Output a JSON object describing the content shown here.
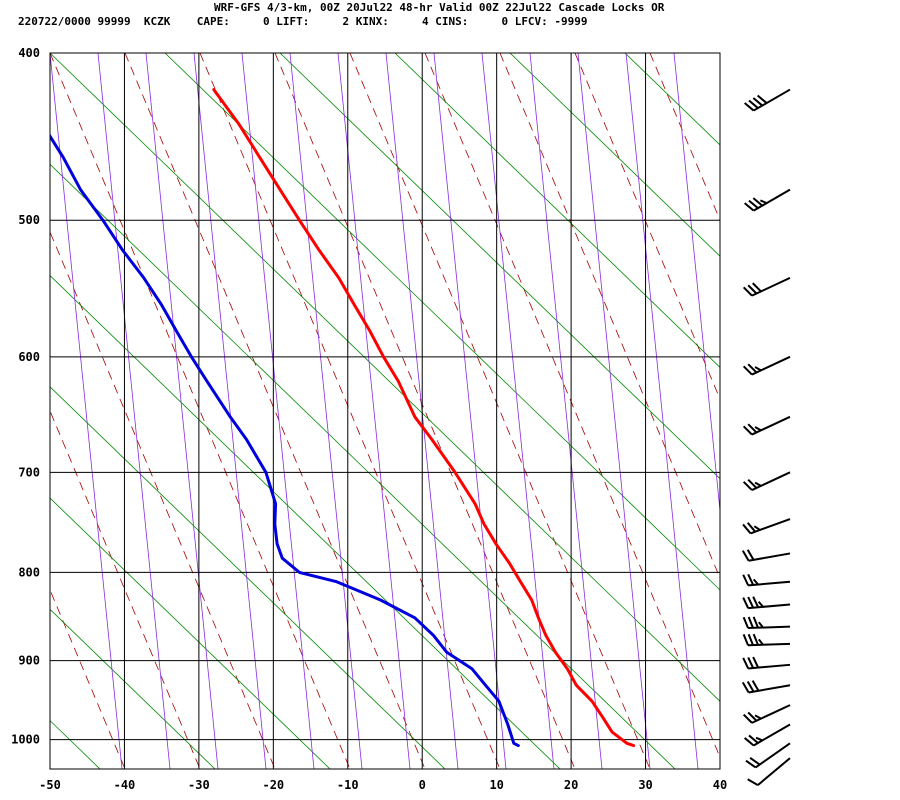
{
  "header": {
    "title": "WRF-GFS 4/3-km, 00Z 20Jul22 48-hr Valid 00Z 22Jul22 Cascade Locks OR",
    "stats": "220722/0000 99999  KCZK    CAPE:     0 LIFT:     2 KINX:     4 CINS:     0 LFCV: -9999"
  },
  "chart_data": {
    "type": "skew-t",
    "x_ticks": [
      -50,
      -40,
      -30,
      -20,
      -10,
      0,
      10,
      20,
      30,
      40
    ],
    "x_unit": "C",
    "p_ticks": [
      400,
      500,
      600,
      700,
      800,
      900,
      1000
    ],
    "p_unit": "hPa",
    "p_range": [
      400,
      1040
    ],
    "series": [
      {
        "color": "#ff0000",
        "points": [
          [
            1008,
            28.4
          ],
          [
            1005,
            27.5
          ],
          [
            990,
            25.5
          ],
          [
            970,
            24.2
          ],
          [
            950,
            22.8
          ],
          [
            930,
            20.7
          ],
          [
            910,
            19.5
          ],
          [
            890,
            17.9
          ],
          [
            870,
            16.6
          ],
          [
            850,
            15.6
          ],
          [
            830,
            14.7
          ],
          [
            810,
            13.2
          ],
          [
            790,
            11.7
          ],
          [
            770,
            9.9
          ],
          [
            750,
            8.3
          ],
          [
            730,
            7.1
          ],
          [
            700,
            4.4
          ],
          [
            670,
            1.3
          ],
          [
            650,
            -1.0
          ],
          [
            620,
            -3.2
          ],
          [
            600,
            -5.2
          ],
          [
            580,
            -7.0
          ],
          [
            560,
            -9.1
          ],
          [
            540,
            -11.2
          ],
          [
            520,
            -13.9
          ],
          [
            500,
            -16.5
          ],
          [
            480,
            -19.1
          ],
          [
            460,
            -21.8
          ],
          [
            440,
            -24.6
          ],
          [
            420,
            -28.0
          ]
        ]
      },
      {
        "color": "#0000dd",
        "points": [
          [
            1008,
            12.9
          ],
          [
            1005,
            12.3
          ],
          [
            980,
            11.5
          ],
          [
            950,
            10.3
          ],
          [
            930,
            8.5
          ],
          [
            910,
            6.7
          ],
          [
            890,
            3.3
          ],
          [
            870,
            1.5
          ],
          [
            850,
            -1.0
          ],
          [
            830,
            -5.6
          ],
          [
            810,
            -11.5
          ],
          [
            800,
            -16.5
          ],
          [
            785,
            -18.8
          ],
          [
            770,
            -19.5
          ],
          [
            750,
            -19.8
          ],
          [
            730,
            -19.7
          ],
          [
            700,
            -21.0
          ],
          [
            670,
            -23.6
          ],
          [
            650,
            -25.8
          ],
          [
            620,
            -28.9
          ],
          [
            600,
            -31.0
          ],
          [
            580,
            -33.0
          ],
          [
            560,
            -35.0
          ],
          [
            540,
            -37.4
          ],
          [
            520,
            -40.3
          ],
          [
            500,
            -42.9
          ],
          [
            480,
            -45.9
          ],
          [
            460,
            -48.2
          ],
          [
            440,
            -51.0
          ],
          [
            420,
            -54.0
          ]
        ]
      }
    ],
    "wind_barbs": [
      {
        "p": 420,
        "speed_kt": 40,
        "dir_deg": 240
      },
      {
        "p": 480,
        "speed_kt": 35,
        "dir_deg": 240
      },
      {
        "p": 540,
        "speed_kt": 30,
        "dir_deg": 245
      },
      {
        "p": 600,
        "speed_kt": 25,
        "dir_deg": 245
      },
      {
        "p": 650,
        "speed_kt": 25,
        "dir_deg": 245
      },
      {
        "p": 700,
        "speed_kt": 25,
        "dir_deg": 245
      },
      {
        "p": 745,
        "speed_kt": 25,
        "dir_deg": 250
      },
      {
        "p": 780,
        "speed_kt": 20,
        "dir_deg": 260
      },
      {
        "p": 810,
        "speed_kt": 25,
        "dir_deg": 265
      },
      {
        "p": 835,
        "speed_kt": 35,
        "dir_deg": 265
      },
      {
        "p": 860,
        "speed_kt": 35,
        "dir_deg": 268
      },
      {
        "p": 880,
        "speed_kt": 35,
        "dir_deg": 268
      },
      {
        "p": 905,
        "speed_kt": 30,
        "dir_deg": 265
      },
      {
        "p": 930,
        "speed_kt": 30,
        "dir_deg": 260
      },
      {
        "p": 955,
        "speed_kt": 25,
        "dir_deg": 245
      },
      {
        "p": 980,
        "speed_kt": 25,
        "dir_deg": 240
      },
      {
        "p": 1005,
        "speed_kt": 20,
        "dir_deg": 235
      },
      {
        "p": 1025,
        "speed_kt": 10,
        "dir_deg": 230
      }
    ],
    "background_colors": {
      "grid": "#000000",
      "dry_adiabat": "#aa0000",
      "moist_adiabat": "#008800",
      "mixing_ratio": "#8a2be2"
    }
  }
}
